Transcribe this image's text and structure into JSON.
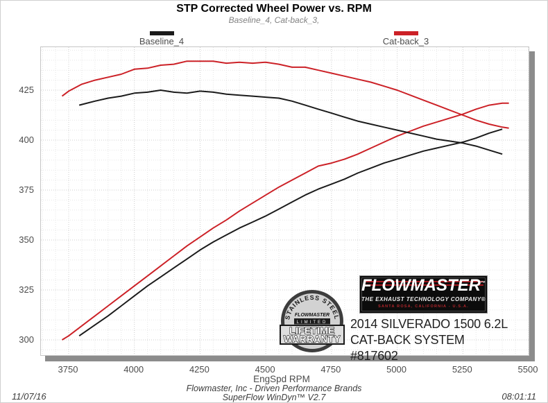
{
  "chart_data": {
    "type": "line",
    "title": "STP Corrected Wheel Power vs. RPM",
    "subtitle": "Baseline_4, Cat-back_3,",
    "xlabel": "EngSpd RPM",
    "ylabel": "",
    "xlim": [
      3650,
      5510
    ],
    "ylim": [
      291.5,
      446
    ],
    "x_ticks": [
      3750,
      4000,
      4250,
      4500,
      4750,
      5000,
      5250,
      5500
    ],
    "y_ticks": [
      300,
      325,
      350,
      375,
      400,
      425
    ],
    "grid": "dotted, minor every 50 RPM / 5 units, major at tick values",
    "legend_position": "top",
    "series": [
      {
        "run": "Cat-back_3",
        "trace": "upper-curve",
        "color": "#cc2127",
        "points": [
          [
            3725,
            422
          ],
          [
            3750,
            424.5
          ],
          [
            3800,
            428
          ],
          [
            3850,
            430
          ],
          [
            3900,
            431.5
          ],
          [
            3950,
            433
          ],
          [
            4000,
            435.5
          ],
          [
            4050,
            436
          ],
          [
            4100,
            437.5
          ],
          [
            4150,
            438
          ],
          [
            4200,
            439.5
          ],
          [
            4250,
            439.5
          ],
          [
            4300,
            439.5
          ],
          [
            4350,
            438.5
          ],
          [
            4400,
            439
          ],
          [
            4450,
            438.5
          ],
          [
            4500,
            439
          ],
          [
            4550,
            438
          ],
          [
            4600,
            436.5
          ],
          [
            4650,
            436.5
          ],
          [
            4700,
            435
          ],
          [
            4750,
            433.5
          ],
          [
            4800,
            432
          ],
          [
            4850,
            430.5
          ],
          [
            4900,
            429
          ],
          [
            4950,
            427
          ],
          [
            5000,
            425
          ],
          [
            5050,
            422.5
          ],
          [
            5100,
            420
          ],
          [
            5150,
            417.5
          ],
          [
            5200,
            415
          ],
          [
            5250,
            412.5
          ],
          [
            5300,
            410
          ],
          [
            5350,
            408
          ],
          [
            5400,
            406.5
          ],
          [
            5425,
            406
          ]
        ]
      },
      {
        "run": "Cat-back_3",
        "trace": "lower-curve",
        "color": "#cc2127",
        "points": [
          [
            3725,
            300
          ],
          [
            3750,
            302
          ],
          [
            3800,
            307
          ],
          [
            3850,
            312
          ],
          [
            3900,
            317
          ],
          [
            3950,
            322
          ],
          [
            4000,
            327
          ],
          [
            4050,
            332
          ],
          [
            4100,
            337
          ],
          [
            4150,
            342
          ],
          [
            4200,
            347
          ],
          [
            4250,
            351.5
          ],
          [
            4300,
            356
          ],
          [
            4350,
            360
          ],
          [
            4400,
            364.5
          ],
          [
            4450,
            368.5
          ],
          [
            4500,
            372.5
          ],
          [
            4550,
            376.5
          ],
          [
            4600,
            380
          ],
          [
            4650,
            383.5
          ],
          [
            4700,
            387
          ],
          [
            4750,
            388.5
          ],
          [
            4800,
            390.5
          ],
          [
            4850,
            393
          ],
          [
            4900,
            396
          ],
          [
            4950,
            399
          ],
          [
            5000,
            402
          ],
          [
            5050,
            404.5
          ],
          [
            5100,
            407
          ],
          [
            5150,
            409
          ],
          [
            5200,
            411
          ],
          [
            5250,
            413
          ],
          [
            5300,
            415.5
          ],
          [
            5350,
            417.5
          ],
          [
            5400,
            418.5
          ],
          [
            5425,
            418.5
          ]
        ]
      },
      {
        "run": "Baseline_4",
        "trace": "upper-curve",
        "color": "#1b1b1b",
        "points": [
          [
            3790,
            417.5
          ],
          [
            3850,
            419.5
          ],
          [
            3900,
            421
          ],
          [
            3950,
            422
          ],
          [
            4000,
            423.5
          ],
          [
            4050,
            424
          ],
          [
            4100,
            425
          ],
          [
            4150,
            424
          ],
          [
            4200,
            423.5
          ],
          [
            4250,
            424.5
          ],
          [
            4300,
            424
          ],
          [
            4350,
            423
          ],
          [
            4400,
            422.5
          ],
          [
            4450,
            422
          ],
          [
            4500,
            421.5
          ],
          [
            4550,
            421
          ],
          [
            4600,
            419.5
          ],
          [
            4650,
            417.5
          ],
          [
            4700,
            415.5
          ],
          [
            4750,
            413.5
          ],
          [
            4800,
            411.5
          ],
          [
            4850,
            409.5
          ],
          [
            4900,
            408
          ],
          [
            4950,
            406.5
          ],
          [
            5000,
            405
          ],
          [
            5050,
            403.5
          ],
          [
            5100,
            402
          ],
          [
            5150,
            400.5
          ],
          [
            5200,
            399.5
          ],
          [
            5250,
            398.5
          ],
          [
            5300,
            397
          ],
          [
            5350,
            395
          ],
          [
            5400,
            393
          ]
        ]
      },
      {
        "run": "Baseline_4",
        "trace": "lower-curve",
        "color": "#1b1b1b",
        "points": [
          [
            3790,
            302
          ],
          [
            3850,
            307.5
          ],
          [
            3900,
            312
          ],
          [
            3950,
            317
          ],
          [
            4000,
            322
          ],
          [
            4050,
            327
          ],
          [
            4100,
            331.5
          ],
          [
            4150,
            336
          ],
          [
            4200,
            340.5
          ],
          [
            4250,
            345
          ],
          [
            4300,
            349
          ],
          [
            4350,
            352.5
          ],
          [
            4400,
            356
          ],
          [
            4450,
            359
          ],
          [
            4500,
            362
          ],
          [
            4550,
            365.5
          ],
          [
            4600,
            369
          ],
          [
            4650,
            372.5
          ],
          [
            4700,
            375.5
          ],
          [
            4750,
            378
          ],
          [
            4800,
            380.5
          ],
          [
            4850,
            383.5
          ],
          [
            4900,
            386
          ],
          [
            4950,
            388.5
          ],
          [
            5000,
            390.5
          ],
          [
            5050,
            392.5
          ],
          [
            5100,
            394.5
          ],
          [
            5150,
            396
          ],
          [
            5200,
            397.5
          ],
          [
            5250,
            399
          ],
          [
            5300,
            401
          ],
          [
            5350,
            403.5
          ],
          [
            5400,
            405.5
          ]
        ]
      }
    ]
  },
  "legend": [
    {
      "label": "Baseline_4",
      "color": "#1b1b1b"
    },
    {
      "label": "Cat-back_3",
      "color": "#cc2127"
    }
  ],
  "branding": {
    "badge": {
      "arc_text": "STAINLESS STEEL",
      "brand": "FLOWMASTER",
      "limited": "LIMITED",
      "line1": "LIFETIME",
      "line2": "WARRANTY"
    },
    "logo": {
      "brand": "FLOWMASTER",
      "tm": "™",
      "tagline": "THE EXHAUST TECHNOLOGY COMPANY®",
      "address": "SANTA ROSA, CALIFORNIA - U.S.A."
    },
    "vehicle": {
      "line1": "2014 SILVERADO 1500 6.2L",
      "line2": "CAT-BACK SYSTEM #817602"
    }
  },
  "footer": {
    "company": "Flowmaster, Inc - Driven Performance Brands",
    "software": "SuperFlow WinDyn™ V2.7",
    "date": "11/07/16",
    "time": "08:01:11"
  }
}
